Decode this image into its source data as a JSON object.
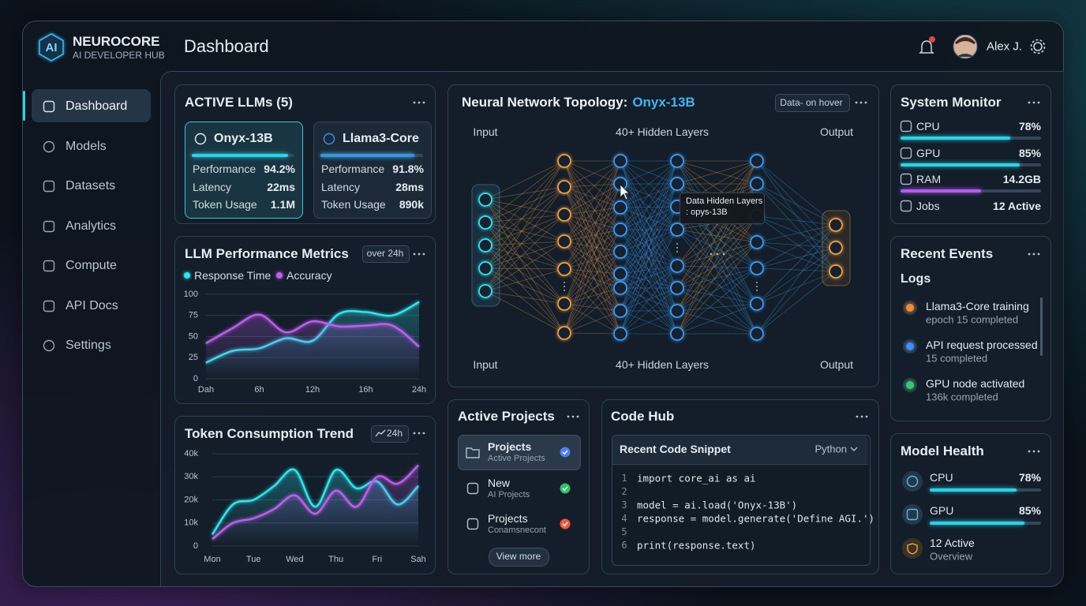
{
  "brand": {
    "logo": "AI",
    "name": "NEUROCORE",
    "tagline": "AI DEVELOPER HUB"
  },
  "header": {
    "title": "Dashboard",
    "user": "Alex J."
  },
  "nav": {
    "items": [
      "Dashboard",
      "Models",
      "Datasets",
      "Analytics",
      "Compute",
      "API Docs",
      "Settings"
    ],
    "active": 0
  },
  "active_llms": {
    "title": "ACTIVE LLMs (5)",
    "cards": [
      {
        "name": "Onyx-13B",
        "rows": [
          {
            "label": "Performance",
            "value": 94.2,
            "value_label": "94.2%"
          },
          {
            "label": "Latency",
            "value_label": "22ms"
          },
          {
            "label": "Token Usage",
            "value_label": "1.1M"
          }
        ]
      },
      {
        "name": "Llama3-Core",
        "rows": [
          {
            "label": "Performance",
            "value": 91.8,
            "value_label": "91.8%"
          },
          {
            "label": "Latency",
            "value_label": "28ms"
          },
          {
            "label": "Token Usage",
            "value_label": "890k"
          }
        ]
      }
    ]
  },
  "chart_data": [
    {
      "type": "line",
      "title": "LLM Performance Metrics",
      "badge": "over 24h",
      "categories": [
        "Dah",
        null,
        "6h",
        null,
        "12h",
        null,
        "16h",
        null,
        "24h"
      ],
      "series": [
        {
          "name": "Response Time",
          "color": "#2ee6f0",
          "values": [
            19,
            33,
            36,
            48,
            45,
            77,
            79,
            75,
            91
          ]
        },
        {
          "name": "Accuracy",
          "color": "#c15cf2",
          "values": [
            42,
            60,
            76,
            55,
            68,
            62,
            63,
            63,
            38
          ]
        }
      ],
      "ylim": [
        0,
        100
      ],
      "yticks": [
        0,
        25,
        50,
        75,
        100
      ],
      "grid": true
    },
    {
      "type": "line",
      "title": "Token Consumption Trend",
      "badge": "24h",
      "categories": [
        "Mon",
        null,
        "Tue",
        null,
        "Wed",
        null,
        "Thu",
        null,
        "Fri",
        null,
        "Sah"
      ],
      "series": [
        {
          "color": "#2ee6f0",
          "values": [
            5000,
            18000,
            20000,
            26000,
            33000,
            17000,
            33000,
            25000,
            28000,
            18000,
            26000
          ]
        },
        {
          "color": "#c15cf2",
          "values": [
            3000,
            10000,
            12000,
            16000,
            22000,
            14000,
            24000,
            17000,
            30000,
            27000,
            35000
          ]
        }
      ],
      "ylim": [
        0,
        40000
      ],
      "yticks": [
        0,
        {
          "value": 10000,
          "label": "10k"
        },
        {
          "value": 20000,
          "label": "20k"
        },
        {
          "value": 30000,
          "label": "30k"
        },
        {
          "value": 40000,
          "label": "40k"
        }
      ],
      "grid": true
    }
  ],
  "network": {
    "title": "Neural Network Topology:",
    "model": "Onyx-13B",
    "badge": "Data- on hover",
    "labels_top": [
      "Input",
      "40+ Hidden Layers",
      "Output"
    ],
    "labels_bottom": [
      "Input",
      "40+ Hidden Layers",
      "Output"
    ],
    "tooltip": [
      "Data Hidden Layers",
      ": opys-13B"
    ]
  },
  "projects": {
    "title": "Active Projects",
    "items": [
      {
        "title": "Projects",
        "subtitle": "Active Projects",
        "status_color": "#4a7ff0"
      },
      {
        "title": "New",
        "subtitle": "AI Projects",
        "status_color": "#32c06a"
      },
      {
        "title": "Projects",
        "subtitle": "Conamsnecont",
        "status_color": "#ef5a3c"
      }
    ],
    "button": "View more"
  },
  "code_hub": {
    "title": "Code Hub",
    "snippet_title": "Recent Code Snippet",
    "language": "Python",
    "lines": [
      {
        "number": 1,
        "code": "import core_ai as ai"
      },
      {
        "number": 2
      },
      {
        "number": 3,
        "code": "model = ai.load('Onyx-13B')"
      },
      {
        "number": 4,
        "code": "response = model.generate('Define AGI.')"
      },
      {
        "number": 5
      },
      {
        "number": 6,
        "code": "print(response.text)"
      }
    ]
  },
  "system_monitor": {
    "title": "System Monitor",
    "items": [
      {
        "label": "CPU",
        "value": 78,
        "value_label": "78%",
        "color": "#2bd3e6"
      },
      {
        "label": "GPU",
        "value": 85,
        "value_label": "85%",
        "color": "#2bd3e6"
      },
      {
        "label": "RAM",
        "value_label": "14.2GB",
        "color": "#b15cf0"
      },
      {
        "label": "Jobs",
        "value_label": "12 Active"
      }
    ]
  },
  "recent_events": {
    "title": "Recent Events",
    "subtitle": "Logs",
    "events": [
      {
        "title": "Llama3-Core training",
        "detail": "epoch 15 completed",
        "color": "#f08a3c"
      },
      {
        "title": "API request processed",
        "detail": "15 completed",
        "color": "#3f8ef0"
      },
      {
        "title": "GPU node activated",
        "detail": "136k completed",
        "color": "#34c77b"
      }
    ]
  },
  "model_health": {
    "title": "Model Health",
    "items": [
      {
        "label": "CPU",
        "value": 78,
        "value_label": "78%"
      },
      {
        "label": "GPU",
        "value": 85,
        "value_label": "85%"
      }
    ],
    "summary": {
      "title": "12 Active",
      "detail": "Overview"
    }
  }
}
